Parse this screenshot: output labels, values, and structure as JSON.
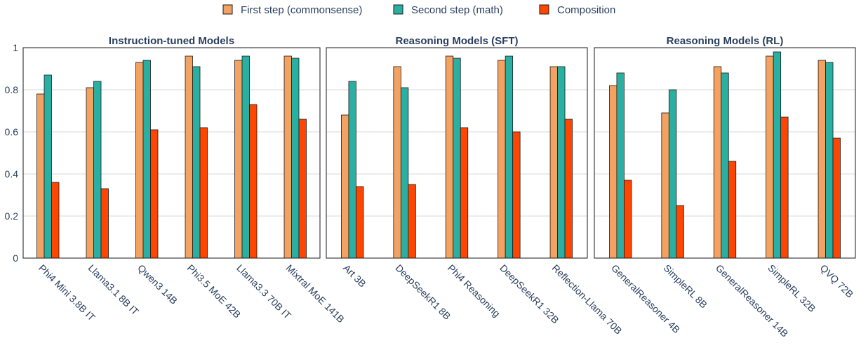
{
  "chart_data": {
    "type": "bar",
    "legend": {
      "placement": "top-center",
      "entries": [
        {
          "name": "First step (commonsense)",
          "color": "#f4a261"
        },
        {
          "name": "Second step (math)",
          "color": "#2ab0a2"
        },
        {
          "name": "Composition",
          "color": "#ff4500"
        }
      ]
    },
    "ylim": [
      0,
      1
    ],
    "yticks": [
      "0",
      "0.2",
      "0.4",
      "0.6",
      "0.8",
      "1"
    ],
    "grid": true,
    "panels": [
      {
        "title": "Instruction-tuned Models",
        "categories": [
          "Phi4 Mini 3.8B IT",
          "Llama3.1 8B IT",
          "Qwen3 14B",
          "Phi3.5 MoE 42B",
          "Llama3.3 70B IT",
          "Mixtral MoE 141B"
        ],
        "series": [
          {
            "name": "First step (commonsense)",
            "values": [
              0.78,
              0.81,
              0.93,
              0.96,
              0.94,
              0.96
            ]
          },
          {
            "name": "Second step (math)",
            "values": [
              0.87,
              0.84,
              0.94,
              0.91,
              0.96,
              0.95
            ]
          },
          {
            "name": "Composition",
            "values": [
              0.36,
              0.33,
              0.61,
              0.62,
              0.73,
              0.66
            ]
          }
        ]
      },
      {
        "title": "Reasoning Models (SFT)",
        "categories": [
          "Art 3B",
          "DeepSeekR1 8B",
          "Phi4 Reasoning",
          "DeepSeekR1 32B",
          "Reflection-Llama 70B"
        ],
        "series": [
          {
            "name": "First step (commonsense)",
            "values": [
              0.68,
              0.91,
              0.96,
              0.94,
              0.91
            ]
          },
          {
            "name": "Second step (math)",
            "values": [
              0.84,
              0.81,
              0.95,
              0.96,
              0.91
            ]
          },
          {
            "name": "Composition",
            "values": [
              0.34,
              0.35,
              0.62,
              0.6,
              0.66
            ]
          }
        ]
      },
      {
        "title": "Reasoning Models (RL)",
        "categories": [
          "GeneralReasoner 4B",
          "SimpleRL 8B",
          "GeneralReasoner 14B",
          "SimpleRL 32B",
          "QVQ 72B"
        ],
        "series": [
          {
            "name": "First step (commonsense)",
            "values": [
              0.82,
              0.69,
              0.91,
              0.96,
              0.94
            ]
          },
          {
            "name": "Second step (math)",
            "values": [
              0.88,
              0.8,
              0.88,
              0.98,
              0.93
            ]
          },
          {
            "name": "Composition",
            "values": [
              0.37,
              0.25,
              0.46,
              0.67,
              0.57
            ]
          }
        ]
      }
    ]
  }
}
